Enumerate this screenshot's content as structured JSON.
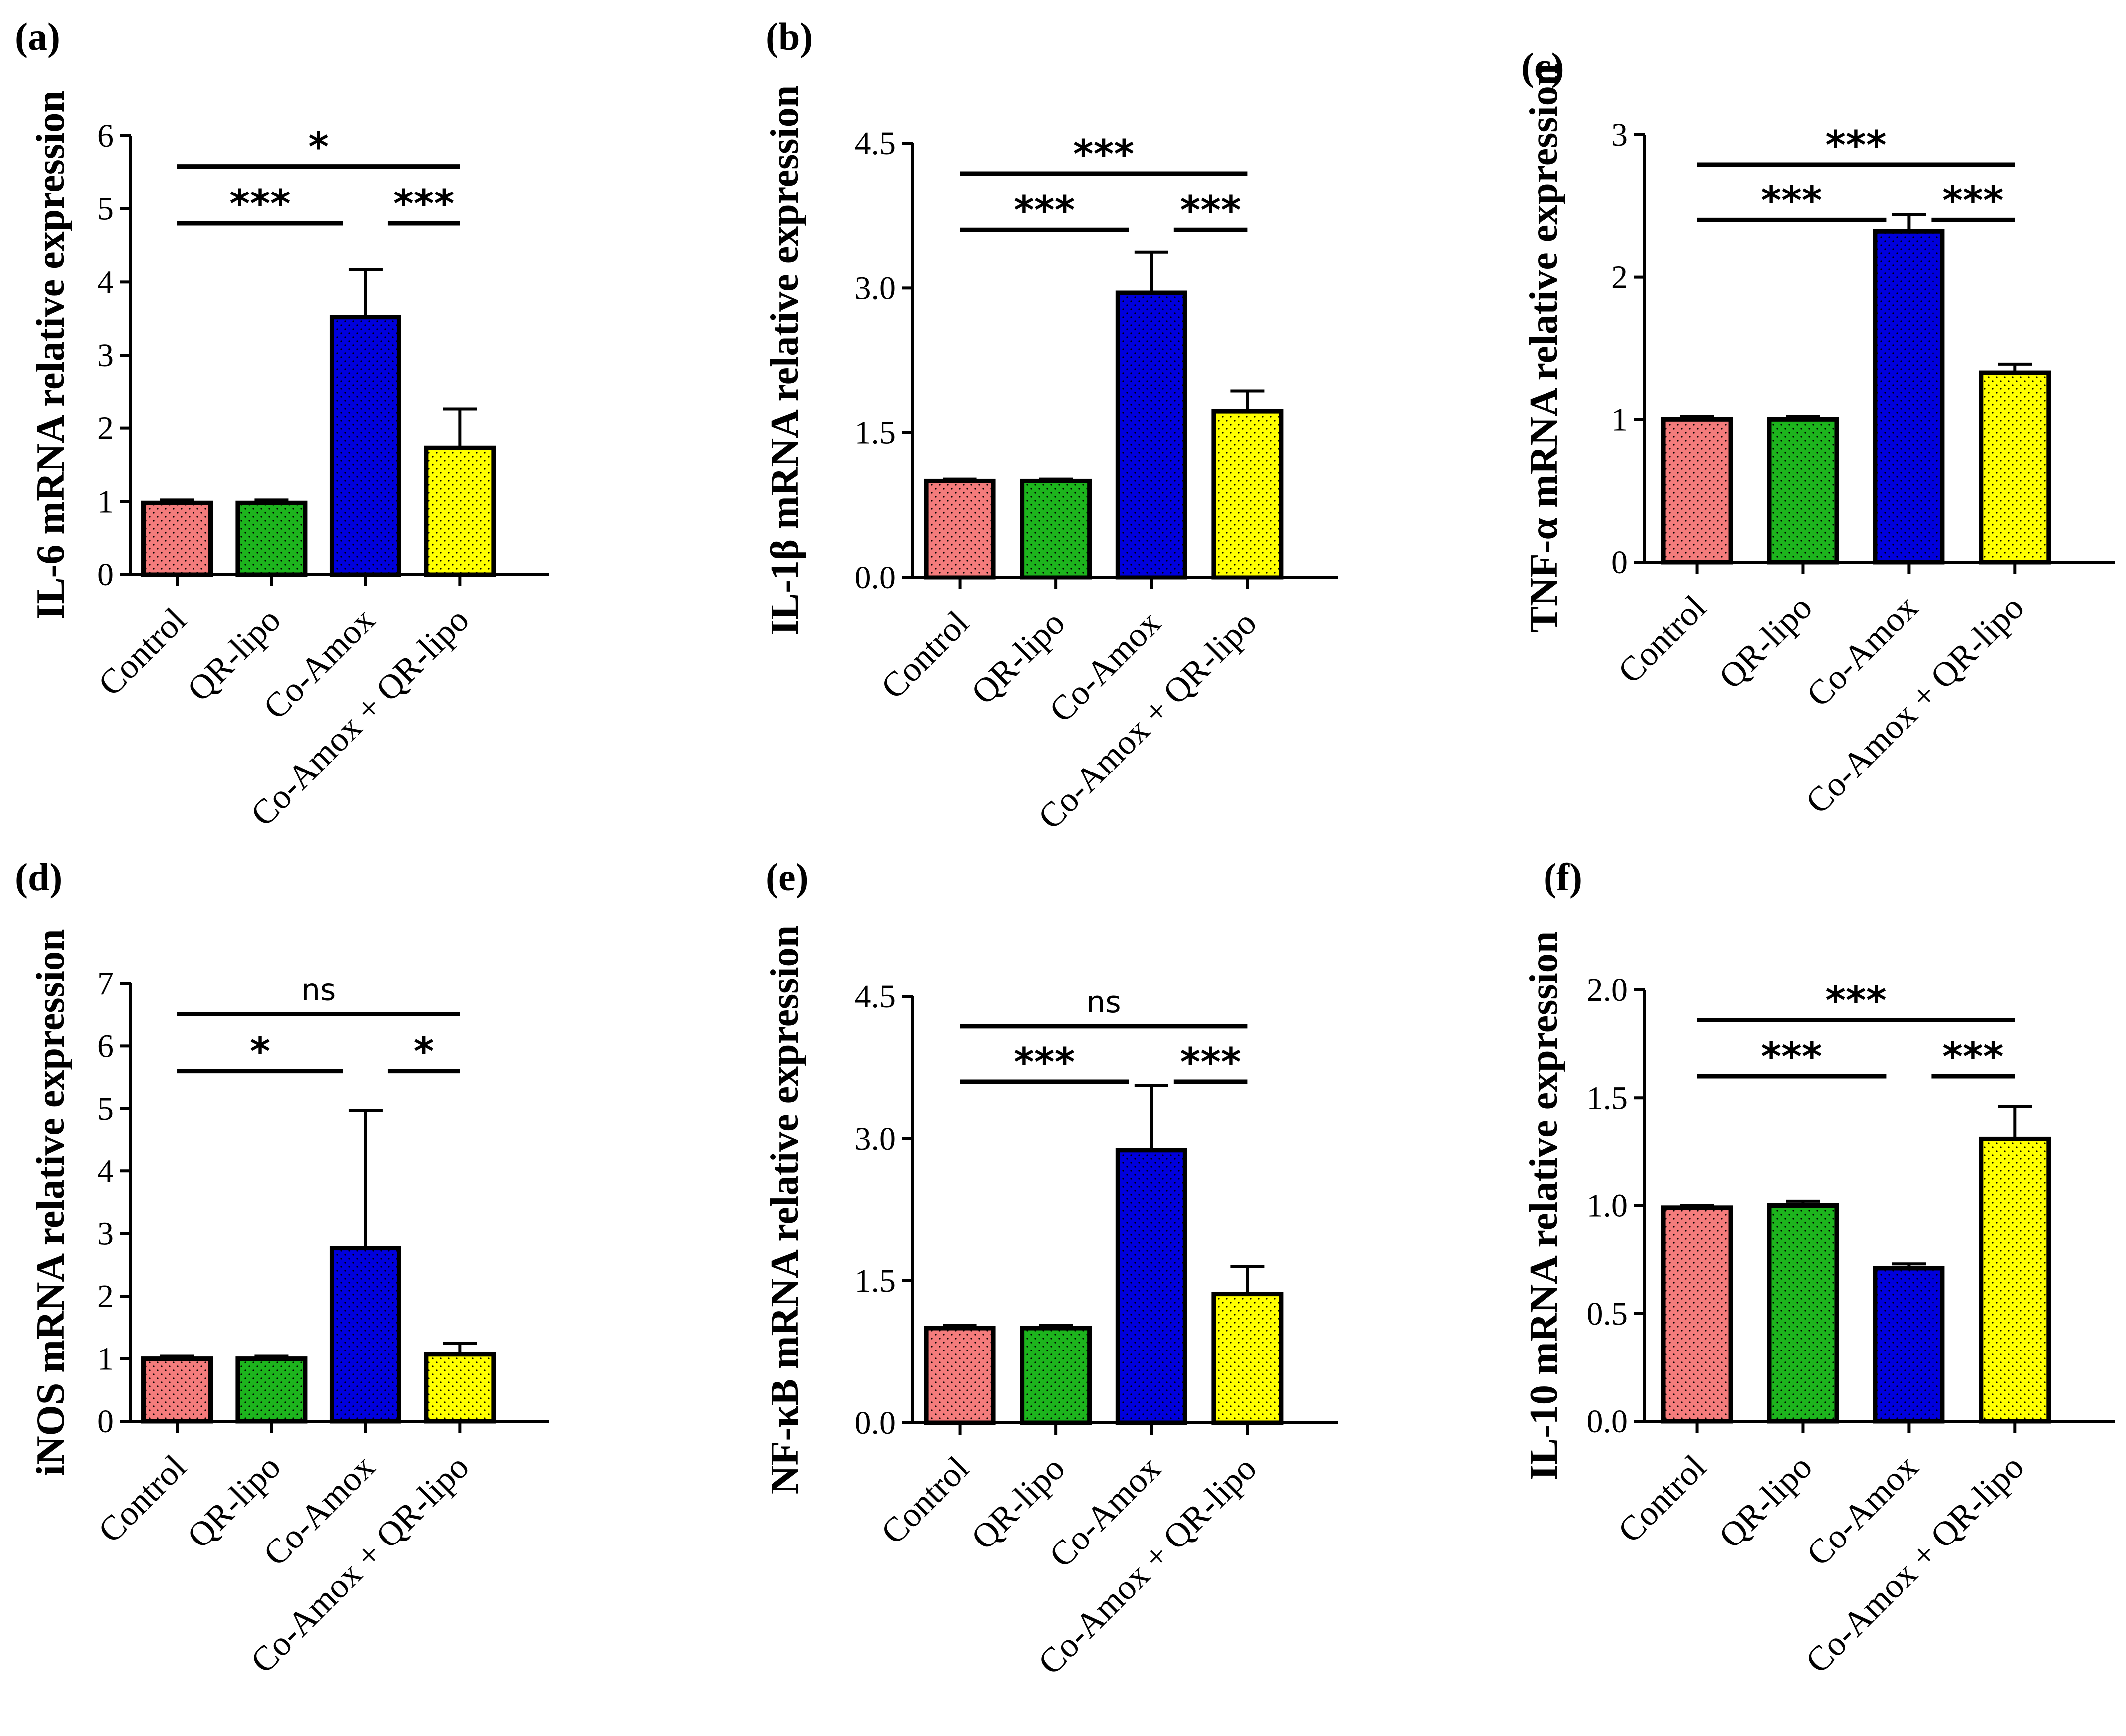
{
  "chart_data": [
    {
      "type": "bar",
      "panel": "(a)",
      "ylabel": "IL-6 mRNA relative expression",
      "categories": [
        "Control",
        "QR-lipo",
        "Co-Amox",
        "Co-Amox + QR-lipo"
      ],
      "values": [
        0.98,
        0.98,
        3.52,
        1.73
      ],
      "errors": [
        0.04,
        0.04,
        0.65,
        0.53
      ],
      "ylim": [
        0,
        6
      ],
      "yticks": [
        "0",
        "1",
        "2",
        "3",
        "4",
        "5",
        "6"
      ],
      "colors": [
        "#f47c7c",
        "#1db41d",
        "#0000dd",
        "#ffff00"
      ],
      "significance": [
        {
          "from": 0,
          "to": 2,
          "label": "***"
        },
        {
          "from": 2,
          "to": 3,
          "label": "***"
        },
        {
          "from": 0,
          "to": 3,
          "label": "*"
        }
      ]
    },
    {
      "type": "bar",
      "panel": "(b)",
      "ylabel": "IL-1β mRNA relative expression",
      "categories": [
        "Control",
        "QR-lipo",
        "Co-Amox",
        "Co-Amox + QR-lipo"
      ],
      "values": [
        1.0,
        1.0,
        2.95,
        1.72
      ],
      "errors": [
        0.02,
        0.02,
        0.42,
        0.21
      ],
      "ylim": [
        0,
        4.5
      ],
      "yticks": [
        "0.0",
        "1.5",
        "3.0",
        "4.5"
      ],
      "colors": [
        "#f47c7c",
        "#1db41d",
        "#0000dd",
        "#ffff00"
      ],
      "significance": [
        {
          "from": 0,
          "to": 2,
          "label": "***"
        },
        {
          "from": 2,
          "to": 3,
          "label": "***"
        },
        {
          "from": 0,
          "to": 3,
          "label": "***"
        }
      ]
    },
    {
      "type": "bar",
      "panel": "(c)",
      "ylabel": "TNF-α mRNA relative expression",
      "categories": [
        "Control",
        "QR-lipo",
        "Co-Amox",
        "Co-Amox + QR-lipo"
      ],
      "values": [
        1.0,
        1.0,
        2.32,
        1.33
      ],
      "errors": [
        0.02,
        0.02,
        0.12,
        0.06
      ],
      "ylim": [
        0,
        3
      ],
      "yticks": [
        "0",
        "1",
        "2",
        "3"
      ],
      "colors": [
        "#f47c7c",
        "#1db41d",
        "#0000dd",
        "#ffff00"
      ],
      "significance": [
        {
          "from": 0,
          "to": 2,
          "label": "***"
        },
        {
          "from": 2,
          "to": 3,
          "label": "***"
        },
        {
          "from": 0,
          "to": 3,
          "label": "***"
        }
      ]
    },
    {
      "type": "bar",
      "panel": "(d)",
      "ylabel": "iNOS mRNA relative expression",
      "categories": [
        "Control",
        "QR-lipo",
        "Co-Amox",
        "Co-Amox + QR-lipo"
      ],
      "values": [
        1.0,
        1.0,
        2.77,
        1.07
      ],
      "errors": [
        0.04,
        0.04,
        2.2,
        0.18
      ],
      "ylim": [
        0,
        7
      ],
      "yticks": [
        "0",
        "1",
        "2",
        "3",
        "4",
        "5",
        "6",
        "7"
      ],
      "colors": [
        "#f47c7c",
        "#1db41d",
        "#0000dd",
        "#ffff00"
      ],
      "significance": [
        {
          "from": 0,
          "to": 2,
          "label": "*"
        },
        {
          "from": 2,
          "to": 3,
          "label": "*"
        },
        {
          "from": 0,
          "to": 3,
          "label": "ns"
        }
      ]
    },
    {
      "type": "bar",
      "panel": "(e)",
      "ylabel": "NF-κB mRNA relative expression",
      "categories": [
        "Control",
        "QR-lipo",
        "Co-Amox",
        "Co-Amox + QR-lipo"
      ],
      "values": [
        1.0,
        1.0,
        2.88,
        1.36
      ],
      "errors": [
        0.03,
        0.03,
        0.68,
        0.29
      ],
      "ylim": [
        0,
        4.5
      ],
      "yticks": [
        "0.0",
        "1.5",
        "3.0",
        "4.5"
      ],
      "colors": [
        "#f47c7c",
        "#1db41d",
        "#0000dd",
        "#ffff00"
      ],
      "significance": [
        {
          "from": 0,
          "to": 2,
          "label": "***"
        },
        {
          "from": 2,
          "to": 3,
          "label": "***"
        },
        {
          "from": 0,
          "to": 3,
          "label": "ns"
        }
      ]
    },
    {
      "type": "bar",
      "panel": "(f)",
      "ylabel": "IL-10 mRNA relative expression",
      "categories": [
        "Control",
        "QR-lipo",
        "Co-Amox",
        "Co-Amox + QR-lipo"
      ],
      "values": [
        0.99,
        1.0,
        0.71,
        1.31
      ],
      "errors": [
        0.01,
        0.02,
        0.02,
        0.15
      ],
      "ylim": [
        0,
        2.0
      ],
      "yticks": [
        "0.0",
        "0.5",
        "1.0",
        "1.5",
        "2.0"
      ],
      "colors": [
        "#f47c7c",
        "#1db41d",
        "#0000dd",
        "#ffff00"
      ],
      "significance": [
        {
          "from": 0,
          "to": 2,
          "label": "***"
        },
        {
          "from": 2,
          "to": 3,
          "label": "***"
        },
        {
          "from": 0,
          "to": 3,
          "label": "***"
        }
      ]
    }
  ]
}
